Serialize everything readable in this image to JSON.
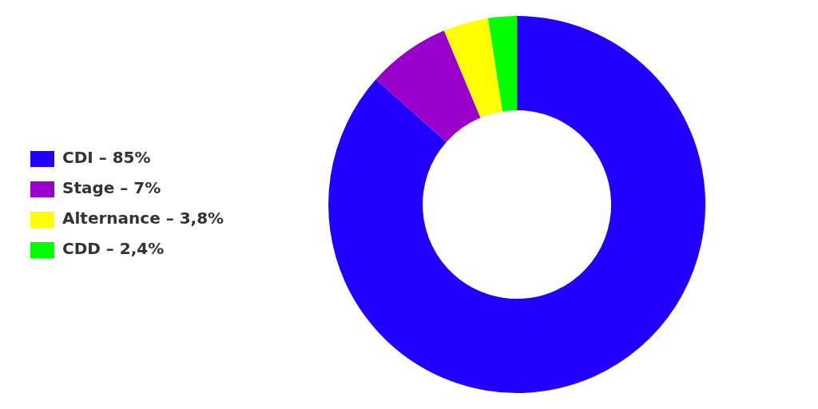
{
  "chart_data": {
    "type": "doughnut",
    "categories": [
      "CDI – 85%",
      "Stage – 7%",
      "Alternance – 3,8%",
      "CDD – 2,4%"
    ],
    "values": [
      85,
      7,
      3.8,
      2.4
    ],
    "colors": [
      "#2200FF",
      "#9900CC",
      "#FFFF00",
      "#00FF00"
    ],
    "legend": "left"
  }
}
